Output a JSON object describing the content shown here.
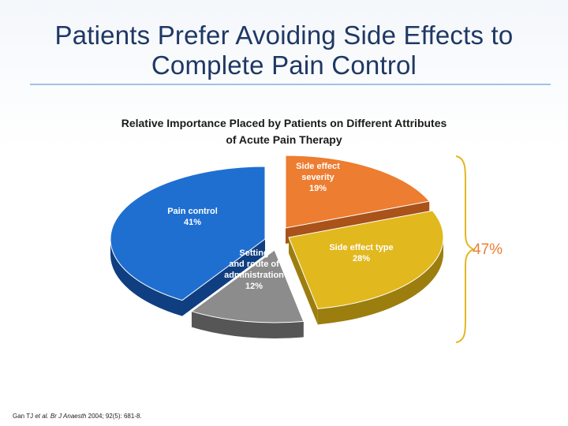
{
  "slide": {
    "title_line1": "Patients Prefer Avoiding Side Effects to",
    "title_line2": "Complete Pain Control"
  },
  "citation": {
    "authors": "Gan TJ ",
    "etal": "et al. Br J Anaesth",
    "ref": " 2004; 92(5): 681-8."
  },
  "chart_data": {
    "type": "pie",
    "title_line1": "Relative Importance Placed by Patients on Different Attributes",
    "title_line2": "of Acute Pain Therapy",
    "slices": [
      {
        "name": "Side effect severity",
        "label_lines": [
          "Side effect",
          "severity"
        ],
        "value": 19,
        "pct_label": "19%",
        "color": "#ed7d31",
        "dark": "#a9521a"
      },
      {
        "name": "Side effect type",
        "label_lines": [
          "Side effect type"
        ],
        "value": 28,
        "pct_label": "28%",
        "color": "#e1b81e",
        "dark": "#9c7e0f"
      },
      {
        "name": "Setting and route of administration",
        "label_lines": [
          "Setting",
          "and route of",
          "administration"
        ],
        "value": 12,
        "pct_label": "12%",
        "color": "#8c8c8c",
        "dark": "#565656"
      },
      {
        "name": "Pain control",
        "label_lines": [
          "Pain control"
        ],
        "value": 41,
        "pct_label": "41%",
        "color": "#1f6fd1",
        "dark": "#0f3f80"
      }
    ],
    "bracket_label": "47%",
    "colors": {
      "title": "#1f3864",
      "rule": "#9dc3e6",
      "bracket": "#e1b81e",
      "bracket_text": "#ed7d31"
    }
  }
}
